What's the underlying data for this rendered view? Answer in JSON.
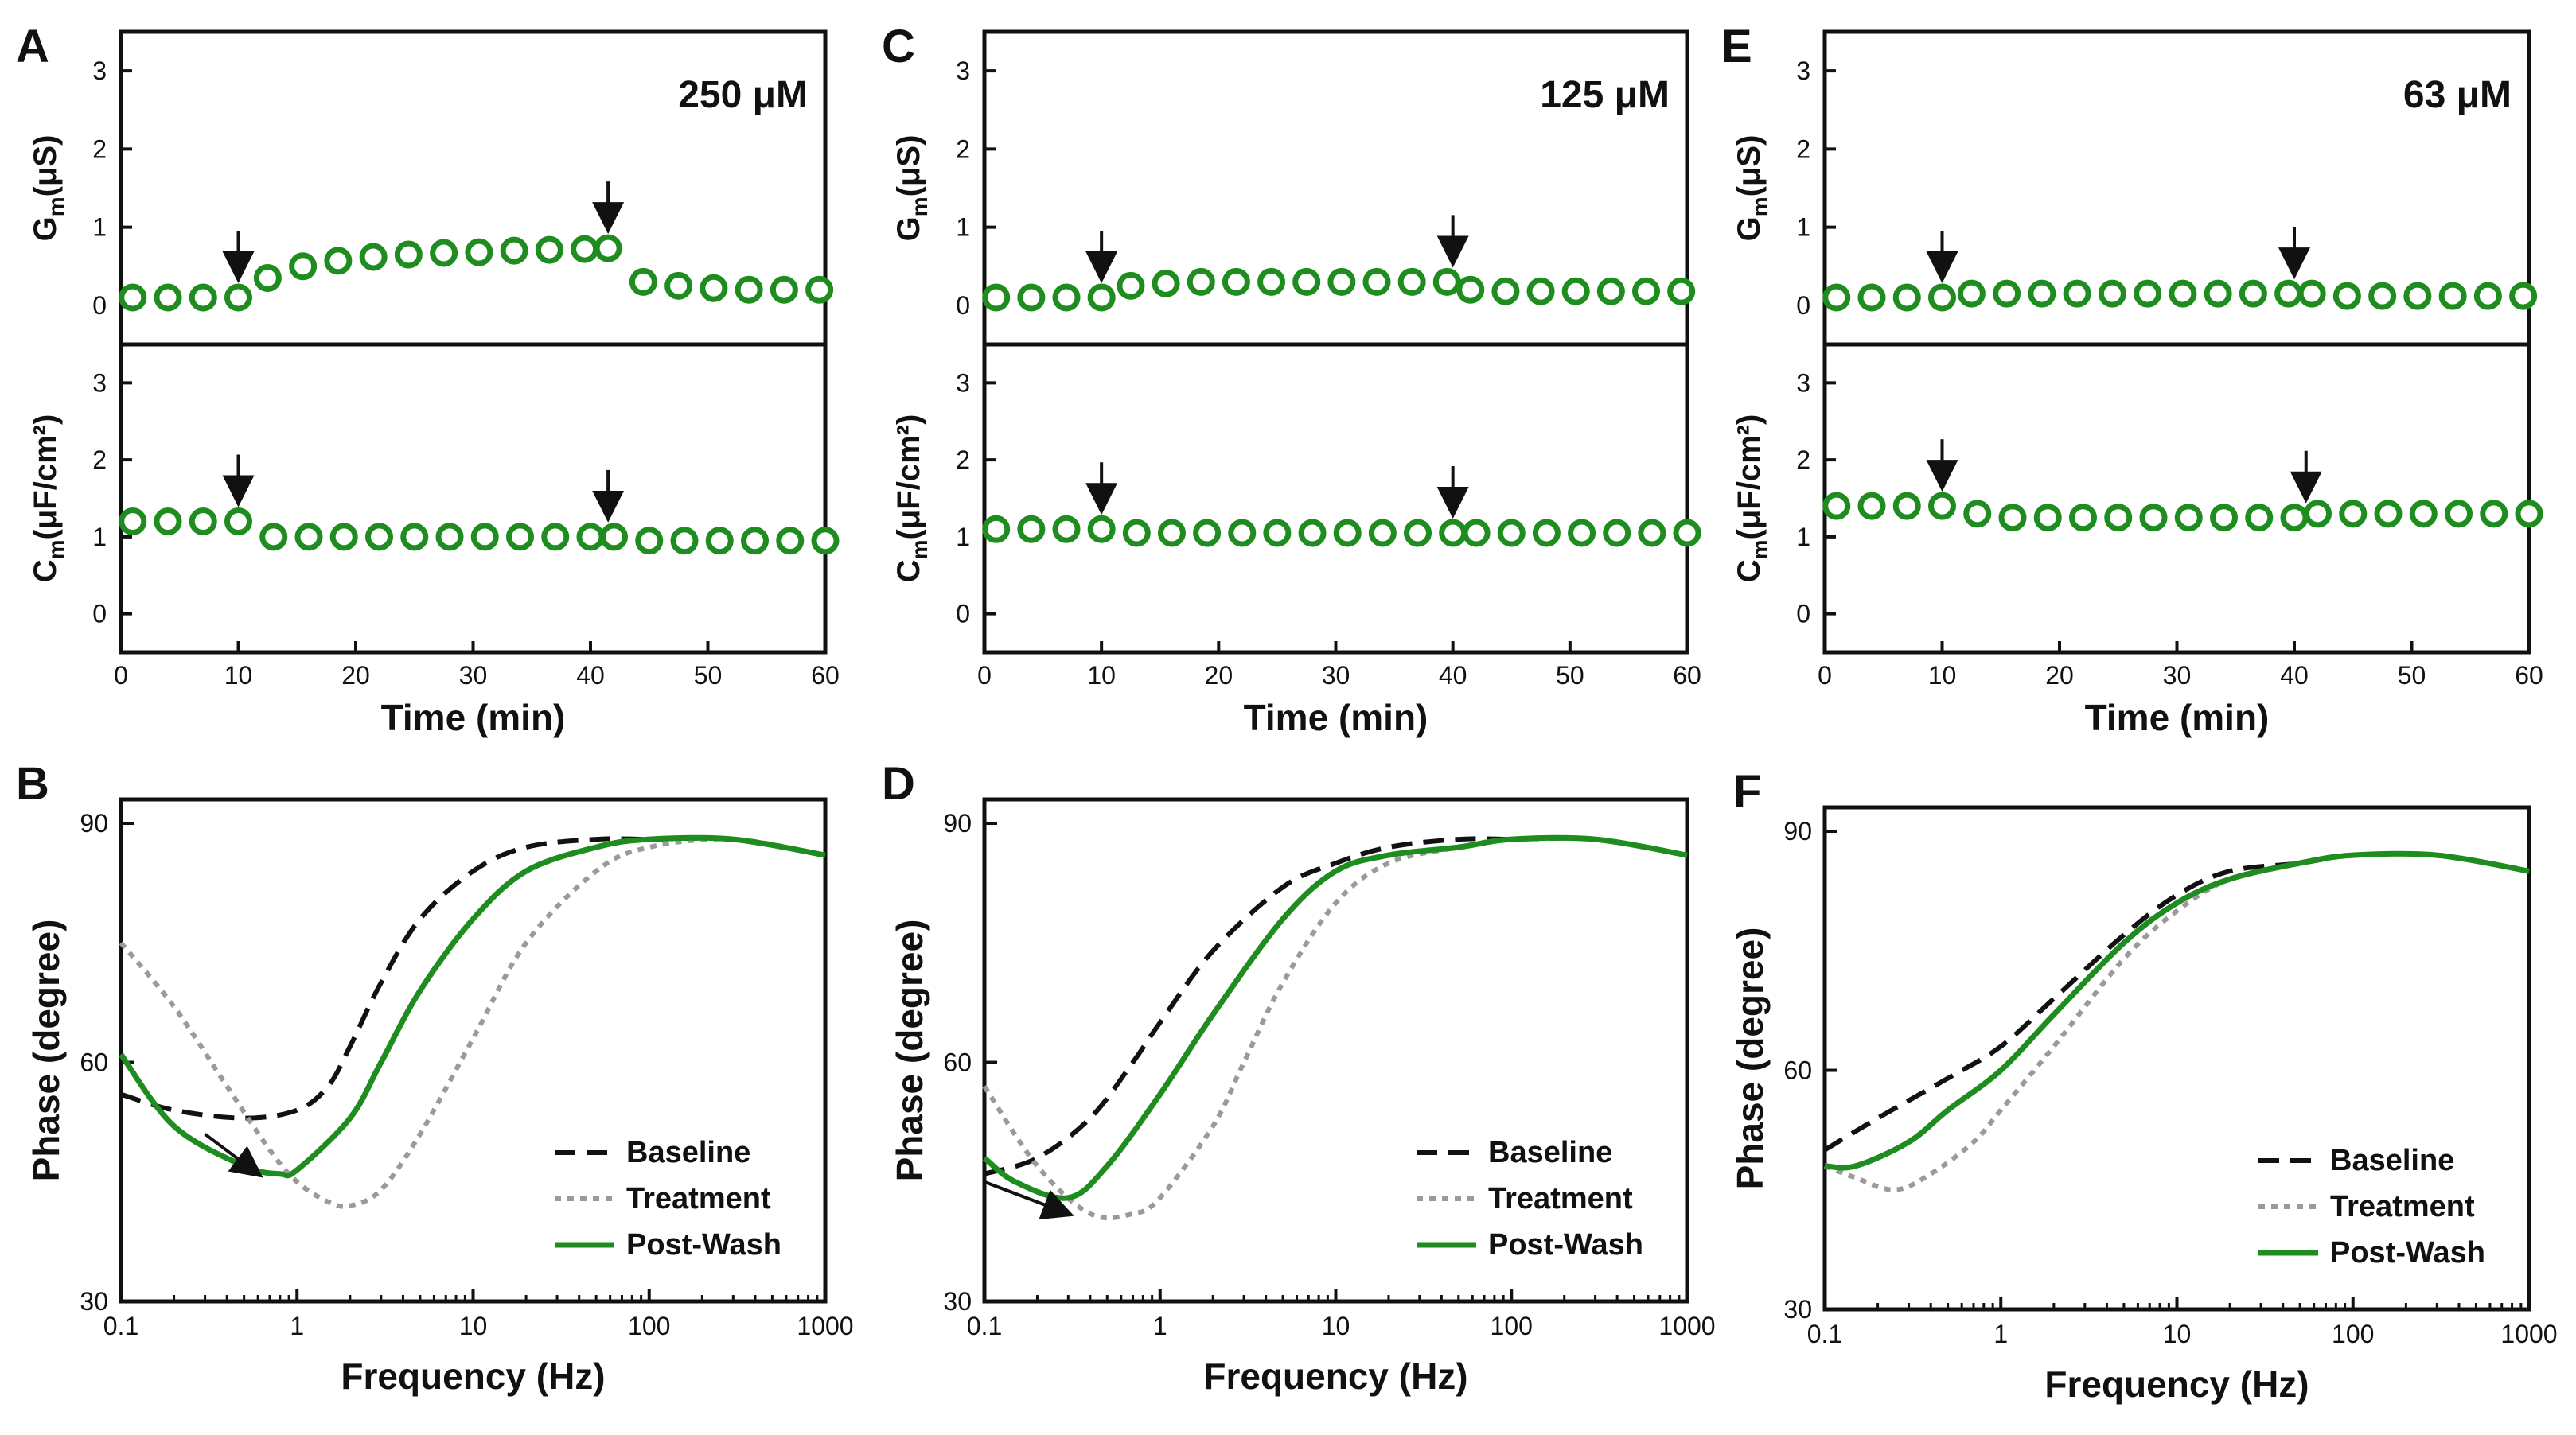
{
  "figure": {
    "colors": {
      "green": "#1e8c1e",
      "black": "#111111",
      "gray": "#9a9a9a",
      "marker_face": "#ffffff"
    }
  },
  "chart_data": [
    {
      "panel": "A",
      "lower_panel": "A",
      "type": "scatter",
      "concentration": "250 μM",
      "xlabel": "Time (min)",
      "xlim": [
        0,
        60
      ],
      "xticks": [
        0,
        10,
        20,
        30,
        40,
        50,
        60
      ],
      "gm": {
        "ylabel_main": "G",
        "ylabel_sub": "m",
        "ylabel_unit": "(μS)",
        "ylim": [
          -0.5,
          3.5
        ],
        "yticks": [
          0,
          1,
          2,
          3
        ],
        "x": [
          1,
          4,
          7,
          10,
          12.5,
          15.5,
          18.5,
          21.5,
          24.5,
          27.5,
          30.5,
          33.5,
          36.5,
          39.5,
          41.5,
          44.5,
          47.5,
          50.5,
          53.5,
          56.5,
          59.5
        ],
        "y": [
          0.1,
          0.1,
          0.1,
          0.1,
          0.35,
          0.5,
          0.57,
          0.62,
          0.65,
          0.67,
          0.68,
          0.7,
          0.71,
          0.72,
          0.73,
          0.3,
          0.25,
          0.22,
          0.2,
          0.2,
          0.2
        ],
        "arrows_at": [
          10,
          41.5
        ]
      },
      "cm": {
        "ylabel_main": "C",
        "ylabel_sub": "m",
        "ylabel_unit": "(μF/cm²)",
        "ylim": [
          -0.5,
          3.5
        ],
        "yticks": [
          0,
          1,
          2,
          3
        ],
        "x": [
          1,
          4,
          7,
          10,
          13,
          16,
          19,
          22,
          25,
          28,
          31,
          34,
          37,
          40,
          42,
          45,
          48,
          51,
          54,
          57,
          60
        ],
        "y": [
          1.2,
          1.2,
          1.2,
          1.2,
          1.0,
          1.0,
          1.0,
          1.0,
          1.0,
          1.0,
          1.0,
          1.0,
          1.0,
          1.0,
          1.0,
          0.95,
          0.95,
          0.95,
          0.95,
          0.95,
          0.95
        ],
        "arrows_at": [
          10,
          41.5
        ]
      }
    },
    {
      "panel": "C",
      "lower_panel": "C",
      "type": "scatter",
      "concentration": "125 μM",
      "xlabel": "Time (min)",
      "xlim": [
        0,
        60
      ],
      "xticks": [
        0,
        10,
        20,
        30,
        40,
        50,
        60
      ],
      "gm": {
        "ylabel_main": "G",
        "ylabel_sub": "m",
        "ylabel_unit": "(μS)",
        "ylim": [
          -0.5,
          3.5
        ],
        "yticks": [
          0,
          1,
          2,
          3
        ],
        "x": [
          1,
          4,
          7,
          10,
          12.5,
          15.5,
          18.5,
          21.5,
          24.5,
          27.5,
          30.5,
          33.5,
          36.5,
          39.5,
          41.5,
          44.5,
          47.5,
          50.5,
          53.5,
          56.5,
          59.5
        ],
        "y": [
          0.1,
          0.1,
          0.1,
          0.1,
          0.25,
          0.28,
          0.3,
          0.3,
          0.3,
          0.3,
          0.3,
          0.3,
          0.3,
          0.3,
          0.2,
          0.18,
          0.18,
          0.18,
          0.18,
          0.18,
          0.18
        ],
        "arrows_at": [
          10,
          40
        ]
      },
      "cm": {
        "ylabel_main": "C",
        "ylabel_sub": "m",
        "ylabel_unit": "(μF/cm²)",
        "ylim": [
          -0.5,
          3.5
        ],
        "yticks": [
          0,
          1,
          2,
          3
        ],
        "x": [
          1,
          4,
          7,
          10,
          13,
          16,
          19,
          22,
          25,
          28,
          31,
          34,
          37,
          40,
          42,
          45,
          48,
          51,
          54,
          57,
          60
        ],
        "y": [
          1.1,
          1.1,
          1.1,
          1.1,
          1.05,
          1.05,
          1.05,
          1.05,
          1.05,
          1.05,
          1.05,
          1.05,
          1.05,
          1.05,
          1.05,
          1.05,
          1.05,
          1.05,
          1.05,
          1.05,
          1.05
        ],
        "arrows_at": [
          10,
          40
        ]
      }
    },
    {
      "panel": "E",
      "lower_panel": "E",
      "type": "scatter",
      "concentration": "63 μM",
      "xlabel": "Time (min)",
      "xlim": [
        0,
        60
      ],
      "xticks": [
        0,
        10,
        20,
        30,
        40,
        50,
        60
      ],
      "gm": {
        "ylabel_main": "G",
        "ylabel_sub": "m",
        "ylabel_unit": "(μS)",
        "ylim": [
          -0.5,
          3.5
        ],
        "yticks": [
          0,
          1,
          2,
          3
        ],
        "x": [
          1,
          4,
          7,
          10,
          12.5,
          15.5,
          18.5,
          21.5,
          24.5,
          27.5,
          30.5,
          33.5,
          36.5,
          39.5,
          41.5,
          44.5,
          47.5,
          50.5,
          53.5,
          56.5,
          59.5
        ],
        "y": [
          0.1,
          0.1,
          0.1,
          0.1,
          0.15,
          0.15,
          0.15,
          0.15,
          0.15,
          0.15,
          0.15,
          0.15,
          0.15,
          0.15,
          0.15,
          0.12,
          0.12,
          0.12,
          0.12,
          0.12,
          0.12
        ],
        "arrows_at": [
          10,
          40
        ]
      },
      "cm": {
        "ylabel_main": "C",
        "ylabel_sub": "m",
        "ylabel_unit": "(μF/cm²)",
        "ylim": [
          -0.5,
          3.5
        ],
        "yticks": [
          0,
          1,
          2,
          3
        ],
        "x": [
          1,
          4,
          7,
          10,
          13,
          16,
          19,
          22,
          25,
          28,
          31,
          34,
          37,
          40,
          42,
          45,
          48,
          51,
          54,
          57,
          60
        ],
        "y": [
          1.4,
          1.4,
          1.4,
          1.4,
          1.3,
          1.25,
          1.25,
          1.25,
          1.25,
          1.25,
          1.25,
          1.25,
          1.25,
          1.25,
          1.3,
          1.3,
          1.3,
          1.3,
          1.3,
          1.3,
          1.3
        ],
        "arrows_at": [
          10,
          41
        ]
      }
    },
    {
      "panel": "B",
      "type": "line",
      "xlabel": "Frequency (Hz)",
      "ylabel": "Phase (degree)",
      "xscale": "log",
      "xlim": [
        0.1,
        1000
      ],
      "xticks": [
        0.1,
        1,
        10,
        100,
        1000
      ],
      "xtick_labels": [
        "0.1",
        "1",
        "10",
        "100",
        "1000"
      ],
      "ylim": [
        30,
        93
      ],
      "yticks": [
        30,
        60,
        90
      ],
      "legend": {
        "placement": "bottom-right"
      },
      "annotation_arrow": {
        "from": [
          0.3,
          51
        ],
        "to": [
          0.6,
          46
        ]
      },
      "series": [
        {
          "name": "Baseline",
          "style": "dashed",
          "color": "#111111",
          "x": [
            0.1,
            0.2,
            0.5,
            1,
            1.5,
            2,
            3,
            5,
            10,
            20,
            50,
            100,
            300,
            1000
          ],
          "y": [
            56,
            54,
            53,
            54,
            57,
            62,
            70,
            78,
            84,
            87,
            88,
            88,
            88,
            86
          ]
        },
        {
          "name": "Treatment",
          "style": "dotted",
          "color": "#9a9a9a",
          "x": [
            0.1,
            0.2,
            0.4,
            0.7,
            1,
            1.5,
            2,
            3,
            5,
            10,
            20,
            50,
            100,
            300,
            1000
          ],
          "y": [
            75,
            67,
            57,
            49,
            45,
            42.5,
            42,
            44,
            51,
            63,
            75,
            84,
            87,
            88,
            86
          ]
        },
        {
          "name": "Post-Wash",
          "style": "solid",
          "color": "#1e8c1e",
          "x": [
            0.1,
            0.2,
            0.5,
            0.8,
            1,
            2,
            3,
            5,
            10,
            20,
            50,
            100,
            300,
            1000
          ],
          "y": [
            61,
            52,
            47,
            46,
            46.5,
            53,
            60,
            69,
            78,
            84,
            87,
            88,
            88,
            86
          ]
        }
      ]
    },
    {
      "panel": "D",
      "type": "line",
      "xlabel": "Frequency (Hz)",
      "ylabel": "Phase (degree)",
      "xscale": "log",
      "xlim": [
        0.1,
        1000
      ],
      "xticks": [
        0.1,
        1,
        10,
        100,
        1000
      ],
      "xtick_labels": [
        "0.1",
        "1",
        "10",
        "100",
        "1000"
      ],
      "ylim": [
        30,
        93
      ],
      "yticks": [
        30,
        60,
        90
      ],
      "legend": {
        "placement": "bottom-right"
      },
      "annotation_arrow": {
        "from": [
          0.1,
          45
        ],
        "to": [
          0.3,
          41
        ]
      },
      "series": [
        {
          "name": "Baseline",
          "style": "dashed",
          "color": "#111111",
          "x": [
            0.1,
            0.2,
            0.4,
            0.7,
            1,
            2,
            5,
            10,
            20,
            50,
            100,
            300,
            1000
          ],
          "y": [
            46,
            48,
            53,
            60,
            65,
            74,
            82,
            85,
            87,
            88,
            88,
            88,
            86
          ]
        },
        {
          "name": "Treatment",
          "style": "dotted",
          "color": "#9a9a9a",
          "x": [
            0.1,
            0.2,
            0.4,
            0.7,
            1,
            2,
            3,
            5,
            10,
            20,
            50,
            100,
            300,
            1000
          ],
          "y": [
            57,
            47,
            41,
            41,
            43,
            52,
            60,
            70,
            80,
            85,
            87,
            88,
            88,
            86
          ]
        },
        {
          "name": "Post-Wash",
          "style": "solid",
          "color": "#1e8c1e",
          "x": [
            0.1,
            0.15,
            0.3,
            0.5,
            1,
            2,
            5,
            10,
            20,
            50,
            100,
            300,
            1000
          ],
          "y": [
            48,
            45,
            43,
            47,
            56,
            66,
            78,
            84,
            86,
            87,
            88,
            88,
            86
          ]
        }
      ]
    },
    {
      "panel": "F",
      "type": "line",
      "xlabel": "Frequency (Hz)",
      "ylabel": "Phase (degree)",
      "xscale": "log",
      "xlim": [
        0.1,
        1000
      ],
      "xticks": [
        0.1,
        1,
        10,
        100,
        1000
      ],
      "xtick_labels": [
        "0.1",
        "1",
        "10",
        "100",
        "1000"
      ],
      "ylim": [
        30,
        93
      ],
      "yticks": [
        30,
        60,
        90
      ],
      "legend": {
        "placement": "bottom-right"
      },
      "series": [
        {
          "name": "Baseline",
          "style": "dashed",
          "color": "#111111",
          "x": [
            0.1,
            0.2,
            0.5,
            1,
            2,
            5,
            10,
            20,
            50,
            100,
            300,
            1000
          ],
          "y": [
            50,
            54,
            59,
            63,
            69,
            77,
            82,
            85,
            86,
            87,
            87,
            85
          ]
        },
        {
          "name": "Treatment",
          "style": "dotted",
          "color": "#9a9a9a",
          "x": [
            0.1,
            0.15,
            0.25,
            0.4,
            0.7,
            1,
            2,
            5,
            10,
            20,
            50,
            100,
            300,
            1000
          ],
          "y": [
            48,
            46.5,
            45,
            47,
            51,
            55,
            63,
            74,
            80,
            84,
            86,
            87,
            87,
            85
          ]
        },
        {
          "name": "Post-Wash",
          "style": "solid",
          "color": "#1e8c1e",
          "x": [
            0.1,
            0.15,
            0.3,
            0.5,
            1,
            2,
            5,
            10,
            20,
            50,
            100,
            300,
            1000
          ],
          "y": [
            48,
            48,
            51,
            55,
            60,
            67,
            76,
            81,
            84,
            86,
            87,
            87,
            85
          ]
        }
      ]
    }
  ]
}
